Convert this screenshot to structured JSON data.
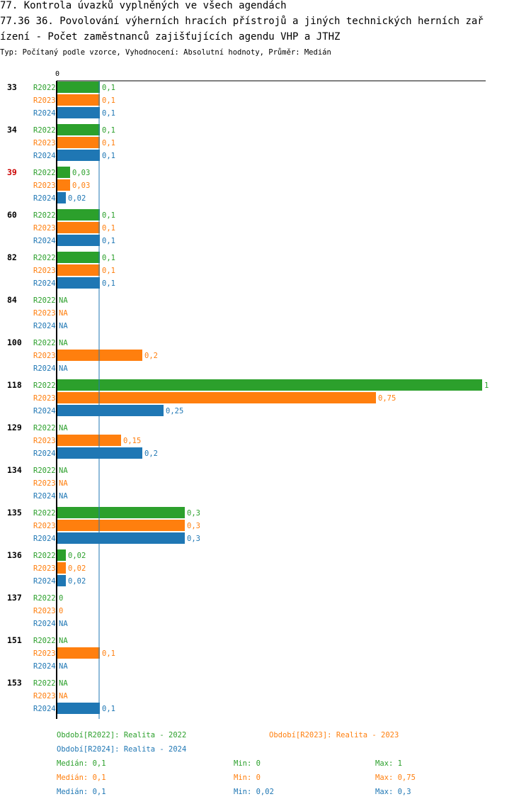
{
  "title_lines": [
    "77. Kontrola úvazků vyplněných ve všech agendách",
    "77.36 36. Povolování výherních hracích přístrojů a jiných technických herních zař",
    "ízení - Počet zaměstnanců zajišťujících agendu VHP a JTHZ"
  ],
  "subtitle": "Typ: Počítaný podle vzorce, Vyhodnocení: Absolutní hodnoty, Průměr: Medián",
  "colors": {
    "R2022": "#2ca02c",
    "R2023": "#ff7f0e",
    "R2024": "#1f77b4",
    "highlight": "#cc0000",
    "axis": "#000000",
    "median_line": "#1f77b4"
  },
  "chart_data": {
    "type": "bar",
    "orientation": "horizontal",
    "axis_min": 0,
    "axis_max": 1,
    "axis_tick_label": "0",
    "median_line_value": 0.1,
    "series_names": [
      "R2022",
      "R2023",
      "R2024"
    ],
    "groups": [
      {
        "id": "33",
        "highlight": false,
        "values": [
          0.1,
          0.1,
          0.1
        ],
        "labels": [
          "0,1",
          "0,1",
          "0,1"
        ]
      },
      {
        "id": "34",
        "highlight": false,
        "values": [
          0.1,
          0.1,
          0.1
        ],
        "labels": [
          "0,1",
          "0,1",
          "0,1"
        ]
      },
      {
        "id": "39",
        "highlight": true,
        "values": [
          0.03,
          0.03,
          0.02
        ],
        "labels": [
          "0,03",
          "0,03",
          "0,02"
        ]
      },
      {
        "id": "60",
        "highlight": false,
        "values": [
          0.1,
          0.1,
          0.1
        ],
        "labels": [
          "0,1",
          "0,1",
          "0,1"
        ]
      },
      {
        "id": "82",
        "highlight": false,
        "values": [
          0.1,
          0.1,
          0.1
        ],
        "labels": [
          "0,1",
          "0,1",
          "0,1"
        ]
      },
      {
        "id": "84",
        "highlight": false,
        "values": [
          null,
          null,
          null
        ],
        "labels": [
          "NA",
          "NA",
          "NA"
        ]
      },
      {
        "id": "100",
        "highlight": false,
        "values": [
          null,
          0.2,
          null
        ],
        "labels": [
          "NA",
          "0,2",
          "NA"
        ]
      },
      {
        "id": "118",
        "highlight": false,
        "values": [
          1,
          0.75,
          0.25
        ],
        "labels": [
          "1",
          "0,75",
          "0,25"
        ]
      },
      {
        "id": "129",
        "highlight": false,
        "values": [
          null,
          0.15,
          0.2
        ],
        "labels": [
          "NA",
          "0,15",
          "0,2"
        ]
      },
      {
        "id": "134",
        "highlight": false,
        "values": [
          null,
          null,
          null
        ],
        "labels": [
          "NA",
          "NA",
          "NA"
        ]
      },
      {
        "id": "135",
        "highlight": false,
        "values": [
          0.3,
          0.3,
          0.3
        ],
        "labels": [
          "0,3",
          "0,3",
          "0,3"
        ]
      },
      {
        "id": "136",
        "highlight": false,
        "values": [
          0.02,
          0.02,
          0.02
        ],
        "labels": [
          "0,02",
          "0,02",
          "0,02"
        ]
      },
      {
        "id": "137",
        "highlight": false,
        "values": [
          0,
          0,
          null
        ],
        "labels": [
          "0",
          "0",
          "NA"
        ]
      },
      {
        "id": "151",
        "highlight": false,
        "values": [
          null,
          0.1,
          null
        ],
        "labels": [
          "NA",
          "0,1",
          "NA"
        ]
      },
      {
        "id": "153",
        "highlight": false,
        "values": [
          null,
          null,
          0.1
        ],
        "labels": [
          "NA",
          "NA",
          "0,1"
        ]
      }
    ]
  },
  "legend": {
    "periods": [
      {
        "series": "R2022",
        "text": "Období[R2022]: Realita - 2022"
      },
      {
        "series": "R2023",
        "text": "Období[R2023]: Realita - 2023"
      },
      {
        "series": "R2024",
        "text": "Období[R2024]: Realita - 2024"
      }
    ],
    "stats": [
      {
        "series": "R2022",
        "median": "Medián: 0,1",
        "min": "Min: 0",
        "max": "Max: 1"
      },
      {
        "series": "R2023",
        "median": "Medián: 0,1",
        "min": "Min: 0",
        "max": "Max: 0,75"
      },
      {
        "series": "R2024",
        "median": "Medián: 0,1",
        "min": "Min: 0,02",
        "max": "Max: 0,3"
      }
    ]
  }
}
